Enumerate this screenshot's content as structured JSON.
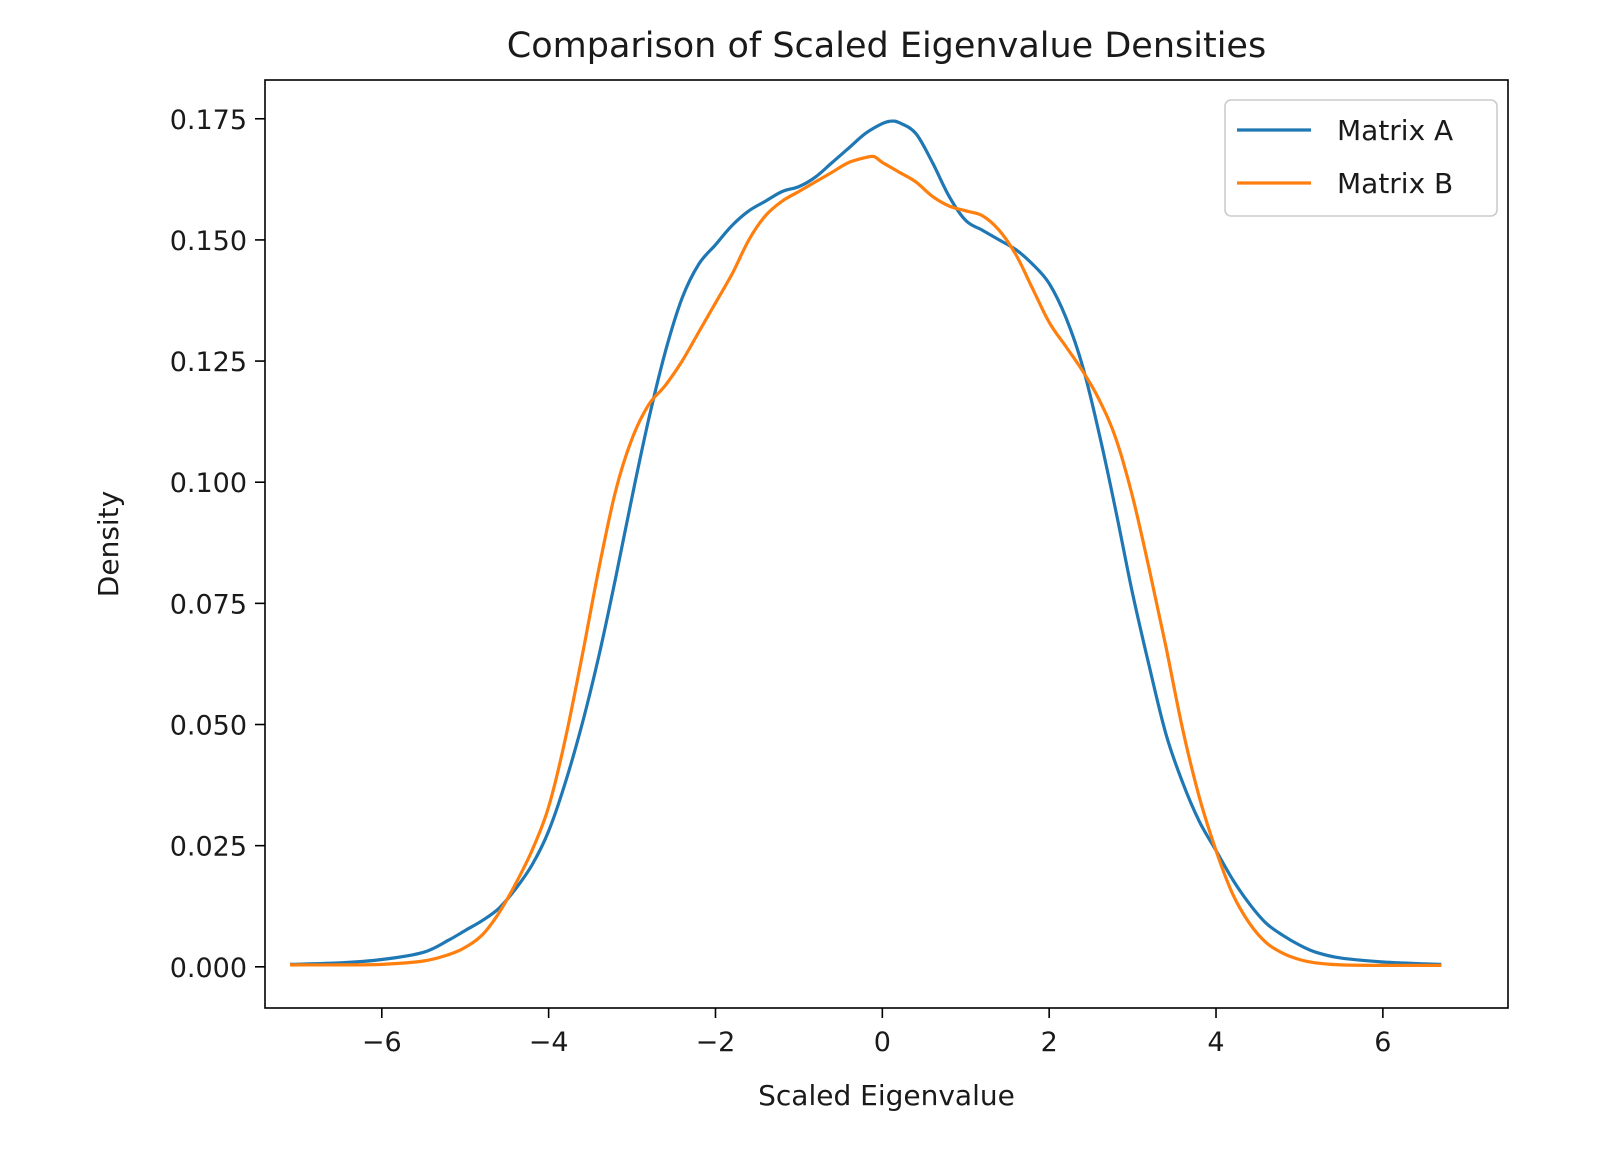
{
  "chart_data": {
    "type": "line",
    "title": "Comparison of Scaled Eigenvalue Densities",
    "xlabel": "Scaled Eigenvalue",
    "ylabel": "Density",
    "xlim": [
      -7.4,
      7.5
    ],
    "ylim": [
      -0.0085,
      0.183
    ],
    "xticks": [
      -6,
      -4,
      -2,
      0,
      2,
      4,
      6
    ],
    "xtick_labels": [
      "−6",
      "−4",
      "−2",
      "0",
      "2",
      "4",
      "6"
    ],
    "yticks": [
      0,
      0.025,
      0.05,
      0.075,
      0.1,
      0.125,
      0.15,
      0.175
    ],
    "ytick_labels": [
      "0.000",
      "0.025",
      "0.050",
      "0.075",
      "0.100",
      "0.125",
      "0.150",
      "0.175"
    ],
    "grid": false,
    "legend_position": "top-right",
    "series": [
      {
        "name": "Matrix A",
        "color": "#1f77b4",
        "x": [
          -7.1,
          -6.5,
          -6.0,
          -5.5,
          -5.2,
          -5.0,
          -4.8,
          -4.6,
          -4.4,
          -4.2,
          -4.0,
          -3.8,
          -3.6,
          -3.4,
          -3.2,
          -3.0,
          -2.8,
          -2.6,
          -2.4,
          -2.2,
          -2.0,
          -1.8,
          -1.6,
          -1.4,
          -1.2,
          -1.0,
          -0.8,
          -0.6,
          -0.4,
          -0.2,
          0.0,
          0.1,
          0.2,
          0.4,
          0.6,
          0.8,
          1.0,
          1.2,
          1.4,
          1.6,
          1.8,
          2.0,
          2.2,
          2.4,
          2.6,
          2.8,
          3.0,
          3.2,
          3.4,
          3.6,
          3.8,
          4.0,
          4.2,
          4.4,
          4.6,
          4.8,
          5.0,
          5.2,
          5.5,
          6.0,
          6.5,
          6.7
        ],
        "y": [
          0.0005,
          0.0008,
          0.0015,
          0.003,
          0.0055,
          0.0075,
          0.0095,
          0.012,
          0.016,
          0.021,
          0.028,
          0.038,
          0.05,
          0.064,
          0.08,
          0.097,
          0.113,
          0.127,
          0.138,
          0.145,
          0.149,
          0.153,
          0.156,
          0.158,
          0.16,
          0.161,
          0.163,
          0.166,
          0.169,
          0.172,
          0.174,
          0.1745,
          0.1742,
          0.172,
          0.166,
          0.159,
          0.154,
          0.152,
          0.15,
          0.148,
          0.145,
          0.141,
          0.134,
          0.124,
          0.11,
          0.094,
          0.077,
          0.062,
          0.048,
          0.038,
          0.03,
          0.024,
          0.018,
          0.013,
          0.009,
          0.0065,
          0.0045,
          0.003,
          0.0018,
          0.001,
          0.0006,
          0.0005
        ]
      },
      {
        "name": "Matrix B",
        "color": "#ff7f0e",
        "x": [
          -7.1,
          -6.5,
          -6.0,
          -5.5,
          -5.2,
          -5.0,
          -4.8,
          -4.6,
          -4.4,
          -4.2,
          -4.0,
          -3.8,
          -3.6,
          -3.4,
          -3.2,
          -3.0,
          -2.8,
          -2.6,
          -2.4,
          -2.2,
          -2.0,
          -1.8,
          -1.6,
          -1.4,
          -1.2,
          -1.0,
          -0.8,
          -0.6,
          -0.4,
          -0.2,
          -0.1,
          0.0,
          0.2,
          0.4,
          0.6,
          0.8,
          1.0,
          1.2,
          1.4,
          1.6,
          1.8,
          2.0,
          2.2,
          2.4,
          2.6,
          2.8,
          3.0,
          3.2,
          3.4,
          3.6,
          3.8,
          4.0,
          4.2,
          4.4,
          4.6,
          4.8,
          5.0,
          5.2,
          5.5,
          6.0,
          6.5,
          6.7
        ],
        "y": [
          0.0004,
          0.0004,
          0.0005,
          0.0012,
          0.0025,
          0.004,
          0.0065,
          0.011,
          0.017,
          0.024,
          0.033,
          0.047,
          0.064,
          0.082,
          0.098,
          0.109,
          0.116,
          0.12,
          0.125,
          0.131,
          0.137,
          0.143,
          0.15,
          0.155,
          0.158,
          0.16,
          0.162,
          0.164,
          0.166,
          0.167,
          0.1672,
          0.166,
          0.164,
          0.162,
          0.159,
          0.157,
          0.156,
          0.155,
          0.152,
          0.147,
          0.14,
          0.133,
          0.128,
          0.123,
          0.117,
          0.109,
          0.097,
          0.082,
          0.066,
          0.049,
          0.035,
          0.024,
          0.015,
          0.009,
          0.005,
          0.0028,
          0.0015,
          0.0008,
          0.0004,
          0.0003,
          0.0003,
          0.0003
        ]
      }
    ]
  }
}
